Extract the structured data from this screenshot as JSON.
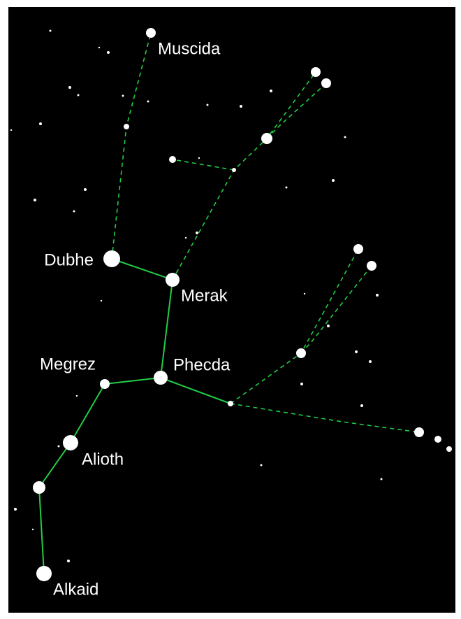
{
  "stars": [
    {
      "label": "Muscida"
    },
    {
      "label": "Dubhe"
    },
    {
      "label": "Merak"
    },
    {
      "label": "Megrez"
    },
    {
      "label": "Phecda"
    },
    {
      "label": "Alioth"
    },
    {
      "label": "Alkaid"
    }
  ]
}
